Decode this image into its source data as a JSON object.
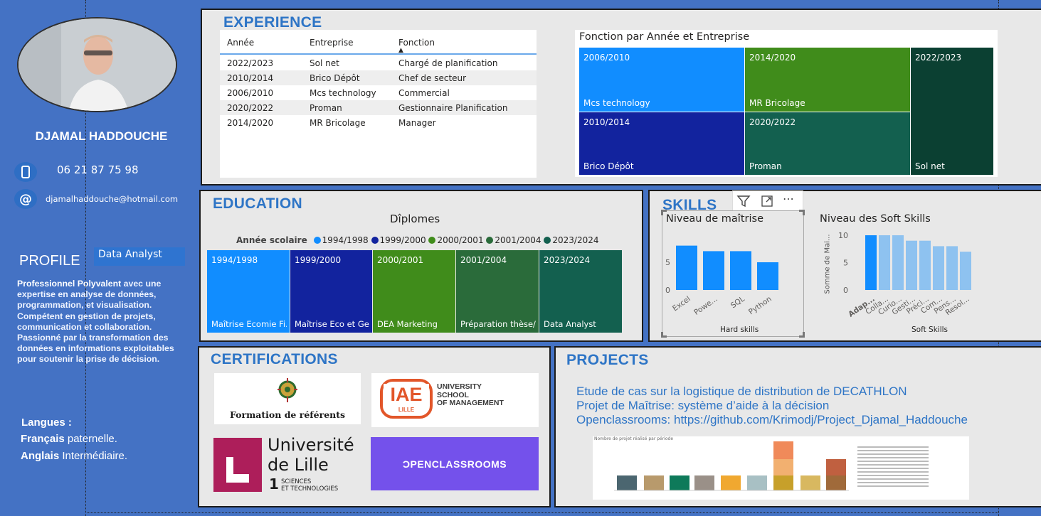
{
  "profile": {
    "name": "DJAMAL HADDOUCHE",
    "phone": "06 21 87 75 98",
    "email": "djamalhaddouche@hotmail.com",
    "profile_heading": "PROFILE",
    "title_badge": "Data Analyst",
    "summary_bold": "Professionnel Polyvalent",
    "summary_rest": " avec une expertise en analyse de données, programmation, et visualisation. Compétent en gestion de projets, communication et collaboration. Passionné par la transformation des données en informations exploitables pour soutenir la prise de décision.",
    "languages_label": "Langues :",
    "lang1_name": "Français",
    "lang1_level": " paternelle.",
    "lang2_name": "Anglais",
    "lang2_level": " Intermédiaire."
  },
  "experience": {
    "title": "EXPERIENCE",
    "headers": [
      "Année",
      "Entreprise",
      "Fonction"
    ],
    "rows": [
      [
        "2022/2023",
        "Sol net",
        "Chargé de planification"
      ],
      [
        "2010/2014",
        "Brico Dépôt",
        "Chef de secteur"
      ],
      [
        "2006/2010",
        "Mcs technology",
        "Commercial"
      ],
      [
        "2020/2022",
        "Proman",
        "Gestionnaire Planification"
      ],
      [
        "2014/2020",
        "MR Bricolage",
        "Manager"
      ]
    ],
    "treemap_title": "Fonction par Année et Entreprise",
    "treemap": [
      {
        "year": "2006/2010",
        "company": "Mcs technology",
        "color": "#118dff"
      },
      {
        "year": "2014/2020",
        "company": "MR Bricolage",
        "color": "#408c1b"
      },
      {
        "year": "2022/2023",
        "company": "Sol net",
        "color": "#0b4032"
      },
      {
        "year": "2010/2014",
        "company": "Brico Dépôt",
        "color": "#12239e"
      },
      {
        "year": "2020/2022",
        "company": "Proman",
        "color": "#13604f"
      }
    ]
  },
  "education": {
    "title": "EDUCATION",
    "chart_title": "Dîplomes",
    "legend_label": "Année scolaire",
    "items": [
      {
        "year": "1994/1998",
        "label": "Maîtrise Ecomie Fi...",
        "color": "#118dff"
      },
      {
        "year": "1999/2000",
        "label": "Maîtrise Eco et Ge...",
        "color": "#12239e"
      },
      {
        "year": "2000/2001",
        "label": "DEA Marketing",
        "color": "#408c1b"
      },
      {
        "year": "2001/2004",
        "label": "Préparation thèse/...",
        "color": "#2a6b3a"
      },
      {
        "year": "2023/2024",
        "label": "Data Analyst",
        "color": "#13604f"
      }
    ]
  },
  "skills": {
    "title": "SKILLS",
    "filter_icon": "filter-icon",
    "focus_icon": "focus-mode-icon",
    "more_icon": "more-options-icon",
    "hard_title": "Niveau de maîtrise",
    "hard_xlabel": "Hard skills",
    "hard_yticks": [
      "5",
      "0"
    ],
    "soft_title": "Niveau des Soft Skills",
    "soft_xlabel": "Soft Skills",
    "soft_ylabel": "Somme de Mai...",
    "soft_yticks": [
      "10",
      "5",
      "0"
    ]
  },
  "chart_data": [
    {
      "type": "bar",
      "title": "Niveau de maîtrise",
      "xlabel": "Hard skills",
      "categories": [
        "Excel",
        "Powe...",
        "SQL",
        "Python"
      ],
      "values": [
        8,
        7,
        7,
        5
      ],
      "ylim": [
        0,
        10
      ],
      "color": "#118dff"
    },
    {
      "type": "bar",
      "title": "Niveau des Soft Skills",
      "xlabel": "Soft Skills",
      "ylabel": "Somme de Mai...",
      "categories": [
        "Adap...",
        "Colla...",
        "Curio...",
        "Gesti...",
        "Préci...",
        "Com...",
        "Pens...",
        "Resol..."
      ],
      "values": [
        10,
        10,
        10,
        9,
        9,
        8,
        8,
        7
      ],
      "ylim": [
        0,
        10
      ],
      "colors": [
        "#118dff",
        "#8ec2f0",
        "#8ec2f0",
        "#8ec2f0",
        "#8ec2f0",
        "#8ec2f0",
        "#8ec2f0",
        "#8ec2f0"
      ]
    }
  ],
  "certifications": {
    "title": "CERTIFICATIONS",
    "formation": "Formation de référents",
    "iae_logo": "IAE",
    "iae_logo_sub": "LILLE",
    "iae_text": [
      "UNIVERSITY",
      "SCHOOL",
      "OF MANAGEMENT"
    ],
    "lille_line1": "Université",
    "lille_line2": "de Lille",
    "lille_num": "1",
    "lille_sub1": "SCIENCES",
    "lille_sub2": "ET TECHNOLOGIES",
    "openclassrooms": "ƆPENCLASSROOMS"
  },
  "projects": {
    "title": "PROJECTS",
    "links": [
      "Etude de cas sur la logistique de distribution de DECATHLON",
      "Projet de Maîtrise: système d’aide à la décision",
      "Openclassrooms: https://github.com/Krimodj/Project_Djamal_Haddouche"
    ],
    "thumb_title": "Nombre de projet réalisé par période"
  }
}
